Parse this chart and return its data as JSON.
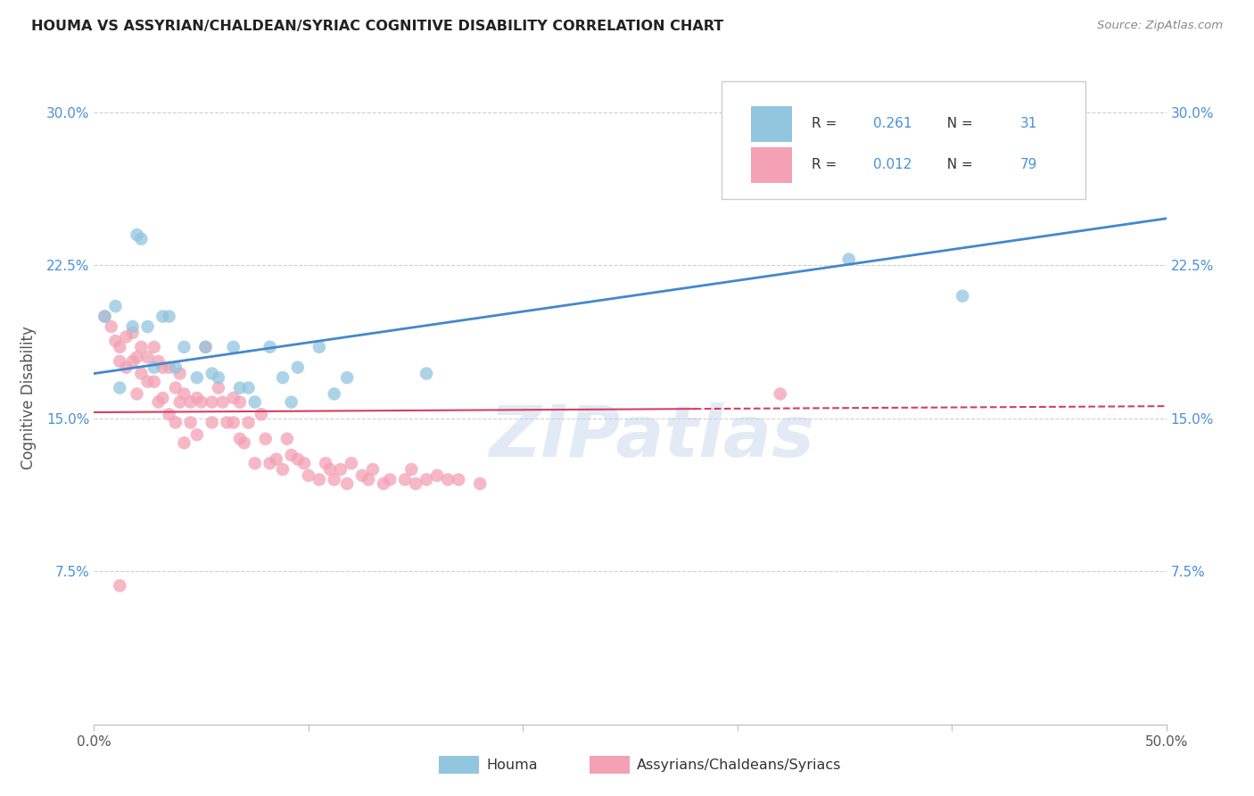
{
  "title": "HOUMA VS ASSYRIAN/CHALDEAN/SYRIAC COGNITIVE DISABILITY CORRELATION CHART",
  "source": "Source: ZipAtlas.com",
  "ylabel": "Cognitive Disability",
  "xlim": [
    0.0,
    0.5
  ],
  "ylim": [
    0.0,
    0.32
  ],
  "xticks": [
    0.0,
    0.1,
    0.2,
    0.3,
    0.4,
    0.5
  ],
  "yticks": [
    0.075,
    0.15,
    0.225,
    0.3
  ],
  "xticklabels": [
    "0.0%",
    "",
    "",
    "",
    "",
    "50.0%"
  ],
  "yticklabels": [
    "7.5%",
    "15.0%",
    "22.5%",
    "30.0%"
  ],
  "legend_r1": "0.261",
  "legend_n1": "31",
  "legend_r2": "0.012",
  "legend_n2": "79",
  "legend_label1": "Houma",
  "legend_label2": "Assyrians/Chaldeans/Syriacs",
  "color_blue": "#92c5de",
  "color_pink": "#f4a0b5",
  "color_blue_line": "#4488cc",
  "color_pink_line": "#d44060",
  "blue_scatter_x": [
    0.005,
    0.01,
    0.012,
    0.018,
    0.02,
    0.022,
    0.025,
    0.028,
    0.032,
    0.035,
    0.038,
    0.042,
    0.048,
    0.052,
    0.055,
    0.058,
    0.065,
    0.068,
    0.072,
    0.075,
    0.082,
    0.088,
    0.092,
    0.095,
    0.105,
    0.112,
    0.118,
    0.155,
    0.3,
    0.352,
    0.405
  ],
  "blue_scatter_y": [
    0.2,
    0.205,
    0.165,
    0.195,
    0.24,
    0.238,
    0.195,
    0.175,
    0.2,
    0.2,
    0.175,
    0.185,
    0.17,
    0.185,
    0.172,
    0.17,
    0.185,
    0.165,
    0.165,
    0.158,
    0.185,
    0.17,
    0.158,
    0.175,
    0.185,
    0.162,
    0.17,
    0.172,
    0.295,
    0.228,
    0.21
  ],
  "pink_scatter_x": [
    0.005,
    0.008,
    0.01,
    0.012,
    0.012,
    0.015,
    0.015,
    0.018,
    0.018,
    0.02,
    0.02,
    0.022,
    0.022,
    0.025,
    0.025,
    0.028,
    0.028,
    0.03,
    0.03,
    0.032,
    0.032,
    0.035,
    0.035,
    0.038,
    0.038,
    0.04,
    0.04,
    0.042,
    0.042,
    0.045,
    0.045,
    0.048,
    0.048,
    0.05,
    0.052,
    0.055,
    0.055,
    0.058,
    0.06,
    0.062,
    0.065,
    0.065,
    0.068,
    0.068,
    0.07,
    0.072,
    0.075,
    0.078,
    0.08,
    0.082,
    0.085,
    0.088,
    0.09,
    0.092,
    0.095,
    0.098,
    0.1,
    0.105,
    0.108,
    0.11,
    0.112,
    0.115,
    0.118,
    0.12,
    0.125,
    0.128,
    0.13,
    0.135,
    0.138,
    0.145,
    0.148,
    0.15,
    0.155,
    0.16,
    0.165,
    0.17,
    0.18,
    0.32,
    0.012
  ],
  "pink_scatter_y": [
    0.2,
    0.195,
    0.188,
    0.185,
    0.178,
    0.19,
    0.175,
    0.178,
    0.192,
    0.18,
    0.162,
    0.172,
    0.185,
    0.18,
    0.168,
    0.185,
    0.168,
    0.178,
    0.158,
    0.175,
    0.16,
    0.175,
    0.152,
    0.165,
    0.148,
    0.158,
    0.172,
    0.162,
    0.138,
    0.158,
    0.148,
    0.142,
    0.16,
    0.158,
    0.185,
    0.158,
    0.148,
    0.165,
    0.158,
    0.148,
    0.148,
    0.16,
    0.14,
    0.158,
    0.138,
    0.148,
    0.128,
    0.152,
    0.14,
    0.128,
    0.13,
    0.125,
    0.14,
    0.132,
    0.13,
    0.128,
    0.122,
    0.12,
    0.128,
    0.125,
    0.12,
    0.125,
    0.118,
    0.128,
    0.122,
    0.12,
    0.125,
    0.118,
    0.12,
    0.12,
    0.125,
    0.118,
    0.12,
    0.122,
    0.12,
    0.12,
    0.118,
    0.162,
    0.068
  ],
  "blue_line_x": [
    0.0,
    0.5
  ],
  "blue_line_y": [
    0.172,
    0.248
  ],
  "pink_line_x": [
    0.0,
    0.5
  ],
  "pink_line_y": [
    0.153,
    0.156
  ],
  "watermark": "ZIPatlas",
  "background_color": "#ffffff",
  "grid_color": "#cccccc"
}
